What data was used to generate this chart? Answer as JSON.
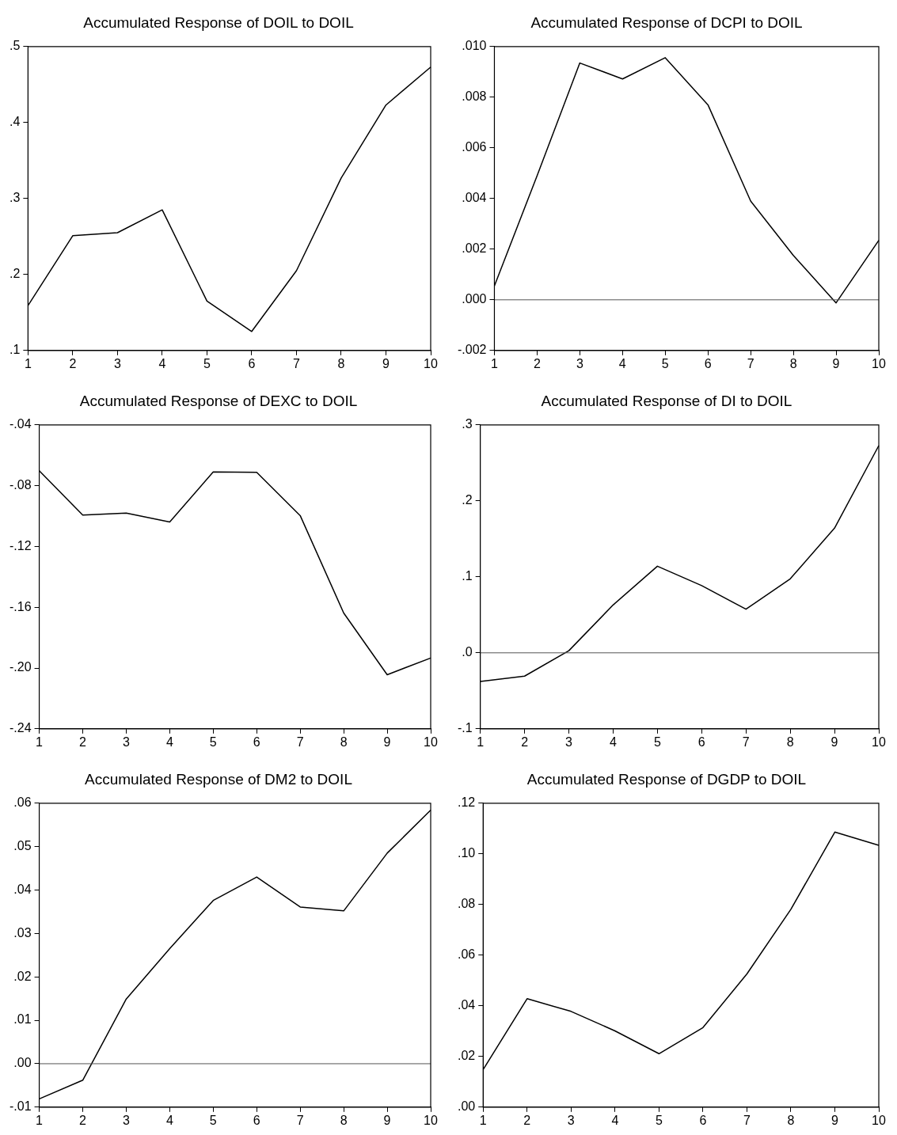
{
  "chart_data": [
    {
      "type": "line",
      "title": "Accumulated Response of DOIL to DOIL",
      "categories": [
        "1",
        "2",
        "3",
        "4",
        "5",
        "6",
        "7",
        "8",
        "9",
        "10"
      ],
      "series": [
        {
          "color": "#000000",
          "values": [
            0.159,
            0.251,
            0.255,
            0.285,
            0.165,
            0.125,
            0.205,
            0.327,
            0.423,
            0.473
          ]
        }
      ],
      "ylim": [
        0.1,
        0.5
      ],
      "yticks": [
        {
          "value": 0.1,
          "label": ".1"
        },
        {
          "value": 0.2,
          "label": ".2"
        },
        {
          "value": 0.3,
          "label": ".3"
        },
        {
          "value": 0.4,
          "label": ".4"
        },
        {
          "value": 0.5,
          "label": ".5"
        }
      ]
    },
    {
      "type": "line",
      "title": "Accumulated Response of DCPI to DOIL",
      "categories": [
        "1",
        "2",
        "3",
        "4",
        "5",
        "6",
        "7",
        "8",
        "9",
        "10"
      ],
      "series": [
        {
          "color": "#000000",
          "values": [
            0.00055,
            0.0049,
            0.00935,
            0.00872,
            0.00956,
            0.0077,
            0.0039,
            0.00175,
            -0.00012,
            0.00235
          ]
        }
      ],
      "ylim": [
        -0.002,
        0.01
      ],
      "yticks": [
        {
          "value": -0.002,
          "label": "-.002"
        },
        {
          "value": 0,
          "label": ".000"
        },
        {
          "value": 0.002,
          "label": ".002"
        },
        {
          "value": 0.004,
          "label": ".004"
        },
        {
          "value": 0.006,
          "label": ".006"
        },
        {
          "value": 0.008,
          "label": ".008"
        },
        {
          "value": 0.01,
          "label": ".010"
        }
      ],
      "ref_lines": [
        {
          "axis": "y",
          "value": 0,
          "color": "#555555"
        }
      ]
    },
    {
      "type": "line",
      "title": "Accumulated Response of DEXC to DOIL",
      "categories": [
        "1",
        "2",
        "3",
        "4",
        "5",
        "6",
        "7",
        "8",
        "9",
        "10"
      ],
      "series": [
        {
          "color": "#000000",
          "values": [
            -0.0702,
            -0.0993,
            -0.0981,
            -0.1039,
            -0.071,
            -0.0712,
            -0.0997,
            -0.1638,
            -0.2044,
            -0.1934
          ]
        }
      ],
      "ylim": [
        -0.24,
        -0.04
      ],
      "yticks": [
        {
          "value": -0.24,
          "label": "-.24"
        },
        {
          "value": -0.2,
          "label": "-.20"
        },
        {
          "value": -0.16,
          "label": "-.16"
        },
        {
          "value": -0.12,
          "label": "-.12"
        },
        {
          "value": -0.08,
          "label": "-.08"
        },
        {
          "value": -0.04,
          "label": "-.04"
        }
      ]
    },
    {
      "type": "line",
      "title": "Accumulated Response of DI to DOIL",
      "categories": [
        "1",
        "2",
        "3",
        "4",
        "5",
        "6",
        "7",
        "8",
        "9",
        "10"
      ],
      "series": [
        {
          "color": "#000000",
          "values": [
            -0.0376,
            -0.0307,
            0.0028,
            0.063,
            0.114,
            0.0885,
            0.0574,
            0.0974,
            0.164,
            0.2727
          ]
        }
      ],
      "ylim": [
        -0.1,
        0.3
      ],
      "yticks": [
        {
          "value": -0.1,
          "label": "-.1"
        },
        {
          "value": 0,
          "label": ".0"
        },
        {
          "value": 0.1,
          "label": ".1"
        },
        {
          "value": 0.2,
          "label": ".2"
        },
        {
          "value": 0.3,
          "label": ".3"
        }
      ],
      "ref_lines": [
        {
          "axis": "y",
          "value": 0,
          "color": "#555555"
        }
      ]
    },
    {
      "type": "line",
      "title": "Accumulated Response of DM2 to DOIL",
      "categories": [
        "1",
        "2",
        "3",
        "4",
        "5",
        "6",
        "7",
        "8",
        "9",
        "10"
      ],
      "series": [
        {
          "color": "#000000",
          "values": [
            -0.0081,
            -0.0038,
            0.0149,
            0.0265,
            0.0376,
            0.043,
            0.0361,
            0.0352,
            0.0485,
            0.0584
          ]
        }
      ],
      "ylim": [
        -0.01,
        0.06
      ],
      "yticks": [
        {
          "value": -0.01,
          "label": "-.01"
        },
        {
          "value": 0,
          "label": ".00"
        },
        {
          "value": 0.01,
          "label": ".01"
        },
        {
          "value": 0.02,
          "label": ".02"
        },
        {
          "value": 0.03,
          "label": ".03"
        },
        {
          "value": 0.04,
          "label": ".04"
        },
        {
          "value": 0.05,
          "label": ".05"
        },
        {
          "value": 0.06,
          "label": ".06"
        }
      ],
      "ref_lines": [
        {
          "axis": "y",
          "value": 0,
          "color": "#555555"
        }
      ]
    },
    {
      "type": "line",
      "title": "Accumulated Response of DGDP to DOIL",
      "categories": [
        "1",
        "2",
        "3",
        "4",
        "5",
        "6",
        "7",
        "8",
        "9",
        "10"
      ],
      "series": [
        {
          "color": "#000000",
          "values": [
            0.0148,
            0.0428,
            0.0378,
            0.0301,
            0.0211,
            0.0314,
            0.0526,
            0.0781,
            0.1086,
            0.1034
          ]
        }
      ],
      "ylim": [
        0,
        0.12
      ],
      "yticks": [
        {
          "value": 0,
          "label": ".00"
        },
        {
          "value": 0.02,
          "label": ".02"
        },
        {
          "value": 0.04,
          "label": ".04"
        },
        {
          "value": 0.06,
          "label": ".06"
        },
        {
          "value": 0.08,
          "label": ".08"
        },
        {
          "value": 0.1,
          "label": ".10"
        },
        {
          "value": 0.12,
          "label": ".12"
        }
      ]
    }
  ]
}
